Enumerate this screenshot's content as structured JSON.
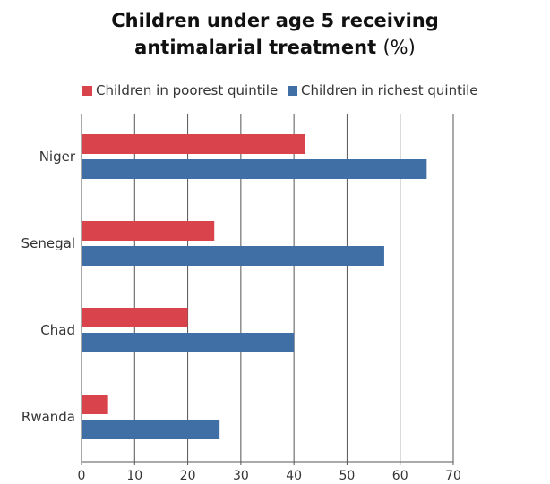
{
  "colors": {
    "poorest": "#d9434c",
    "richest": "#3f6fa5",
    "grid": "#555555"
  },
  "chart_data": {
    "type": "bar",
    "orientation": "horizontal",
    "title_main": "Children under age 5 receiving antimalarial treatment",
    "title_unit": "(%)",
    "categories": [
      "Niger",
      "Senegal",
      "Chad",
      "Rwanda"
    ],
    "series": [
      {
        "name": "Children in poorest quintile",
        "values": [
          42,
          25,
          20,
          5
        ]
      },
      {
        "name": "Children in richest quintile",
        "values": [
          65,
          57,
          40,
          26
        ]
      }
    ],
    "xlim": [
      0,
      70
    ],
    "xticks": [
      0,
      10,
      20,
      30,
      40,
      50,
      60,
      70
    ],
    "grid": "vertical",
    "legend_position": "top"
  }
}
